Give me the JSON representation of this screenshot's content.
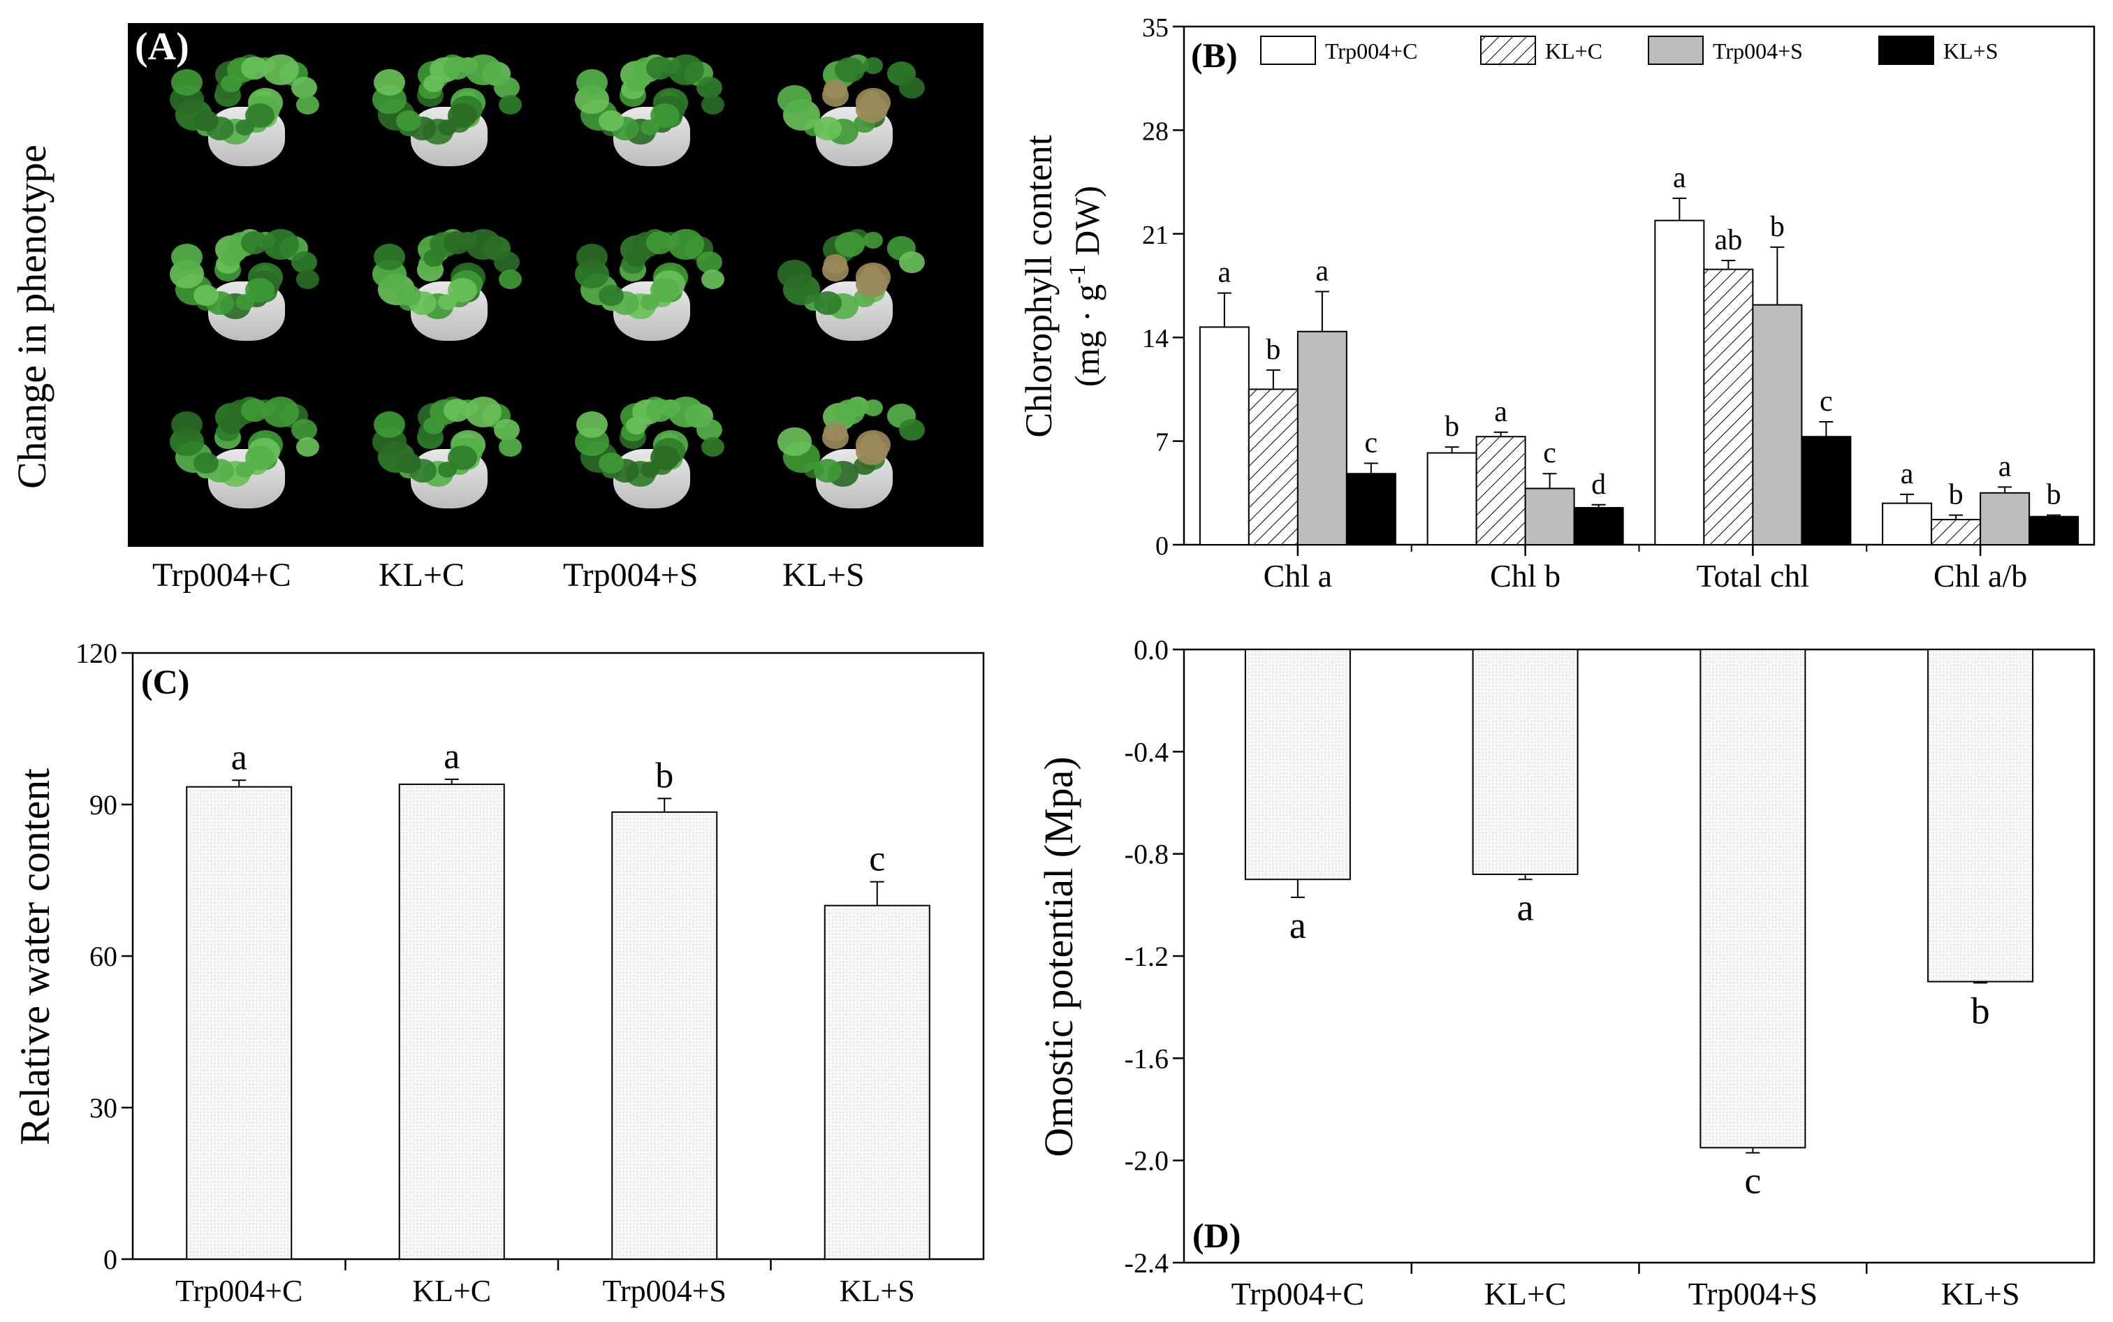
{
  "panelA": {
    "label": "(A)",
    "ylabel": "Change in phenotype",
    "captions": [
      "Trp004+C",
      "KL+C",
      "Trp004+S",
      "KL+S"
    ]
  },
  "chart_data": [
    {
      "id": "B",
      "type": "bar",
      "panel_label": "(B)",
      "ylabel_line1": "Chlorophyll content",
      "ylabel_line2_prefix": "(mg · g",
      "ylabel_superscript": "-1",
      "ylabel_line2_suffix": " DW)",
      "ylim": [
        0,
        35
      ],
      "yticks": [
        0,
        7,
        14,
        21,
        28,
        35
      ],
      "categories": [
        "Chl a",
        "Chl b",
        "Total chl",
        "Chl a/b"
      ],
      "legend_position": "top",
      "series": [
        {
          "name": "Trp004+C",
          "fill": "#ffffff",
          "values": [
            14.7,
            6.2,
            21.9,
            2.8
          ],
          "errors": [
            2.3,
            0.4,
            1.5,
            0.6
          ],
          "letters": [
            "a",
            "b",
            "a",
            "a"
          ]
        },
        {
          "name": "KL+C",
          "fill": "hatch",
          "values": [
            10.5,
            7.3,
            18.6,
            1.7
          ],
          "errors": [
            1.3,
            0.3,
            0.6,
            0.3
          ],
          "letters": [
            "b",
            "a",
            "ab",
            "b"
          ]
        },
        {
          "name": "Trp004+S",
          "fill": "#bdbdbd",
          "values": [
            14.4,
            3.8,
            16.2,
            3.5
          ],
          "errors": [
            2.7,
            1.0,
            3.9,
            0.4
          ],
          "letters": [
            "a",
            "c",
            "b",
            "a"
          ]
        },
        {
          "name": "KL+S",
          "fill": "#000000",
          "values": [
            4.8,
            2.5,
            7.3,
            1.9
          ],
          "errors": [
            0.7,
            0.2,
            1.0,
            0.1
          ],
          "letters": [
            "c",
            "d",
            "c",
            "b"
          ]
        }
      ]
    },
    {
      "id": "C",
      "type": "bar",
      "panel_label": "(C)",
      "ylabel": "Relative water content",
      "ylim": [
        0,
        120
      ],
      "yticks": [
        0,
        30,
        60,
        90,
        120
      ],
      "categories": [
        "Trp004+C",
        "KL+C",
        "Trp004+S",
        "KL+S"
      ],
      "values": [
        93.5,
        94.0,
        88.5,
        70.0
      ],
      "errors": [
        1.3,
        1.0,
        2.7,
        4.7
      ],
      "letters": [
        "a",
        "a",
        "b",
        "c"
      ]
    },
    {
      "id": "D",
      "type": "bar",
      "panel_label": "(D)",
      "ylabel": "Omostic potential (Mpa)",
      "ylim": [
        -2.4,
        0.0
      ],
      "yticks": [
        "0.0",
        "-0.4",
        "-0.8",
        "-1.2",
        "-1.6",
        "-2.0",
        "-2.4"
      ],
      "categories": [
        "Trp004+C",
        "KL+C",
        "Trp004+S",
        "KL+S"
      ],
      "values": [
        -0.9,
        -0.88,
        -1.95,
        -1.3
      ],
      "errors": [
        0.07,
        0.02,
        0.02,
        0.005
      ],
      "letters": [
        "a",
        "a",
        "c",
        "b"
      ]
    }
  ]
}
